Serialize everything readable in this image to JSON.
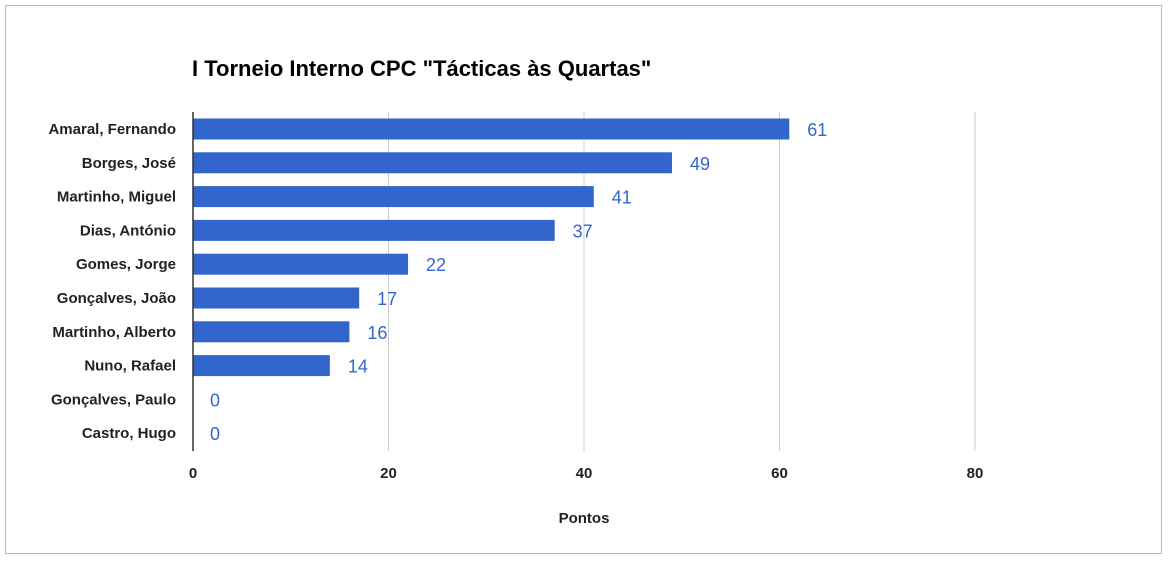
{
  "chart_data": {
    "type": "bar",
    "orientation": "horizontal",
    "title": "I Torneio Interno CPC \"Tácticas às Quartas\"",
    "xlabel": "Pontos",
    "ylabel": "",
    "categories": [
      "Amaral, Fernando",
      "Borges, José",
      "Martinho, Miguel",
      "Dias, António",
      "Gomes, Jorge",
      "Gonçalves, João",
      "Martinho, Alberto",
      "Nuno, Rafael",
      "Gonçalves, Paulo",
      "Castro, Hugo"
    ],
    "values": [
      61,
      49,
      41,
      37,
      22,
      17,
      16,
      14,
      0,
      0
    ],
    "xlim": [
      0,
      80
    ],
    "xticks": [
      0,
      20,
      40,
      60,
      80
    ],
    "grid": true,
    "legend": "none",
    "bar_color": "#3366cc",
    "label_color": "#3366cc"
  }
}
